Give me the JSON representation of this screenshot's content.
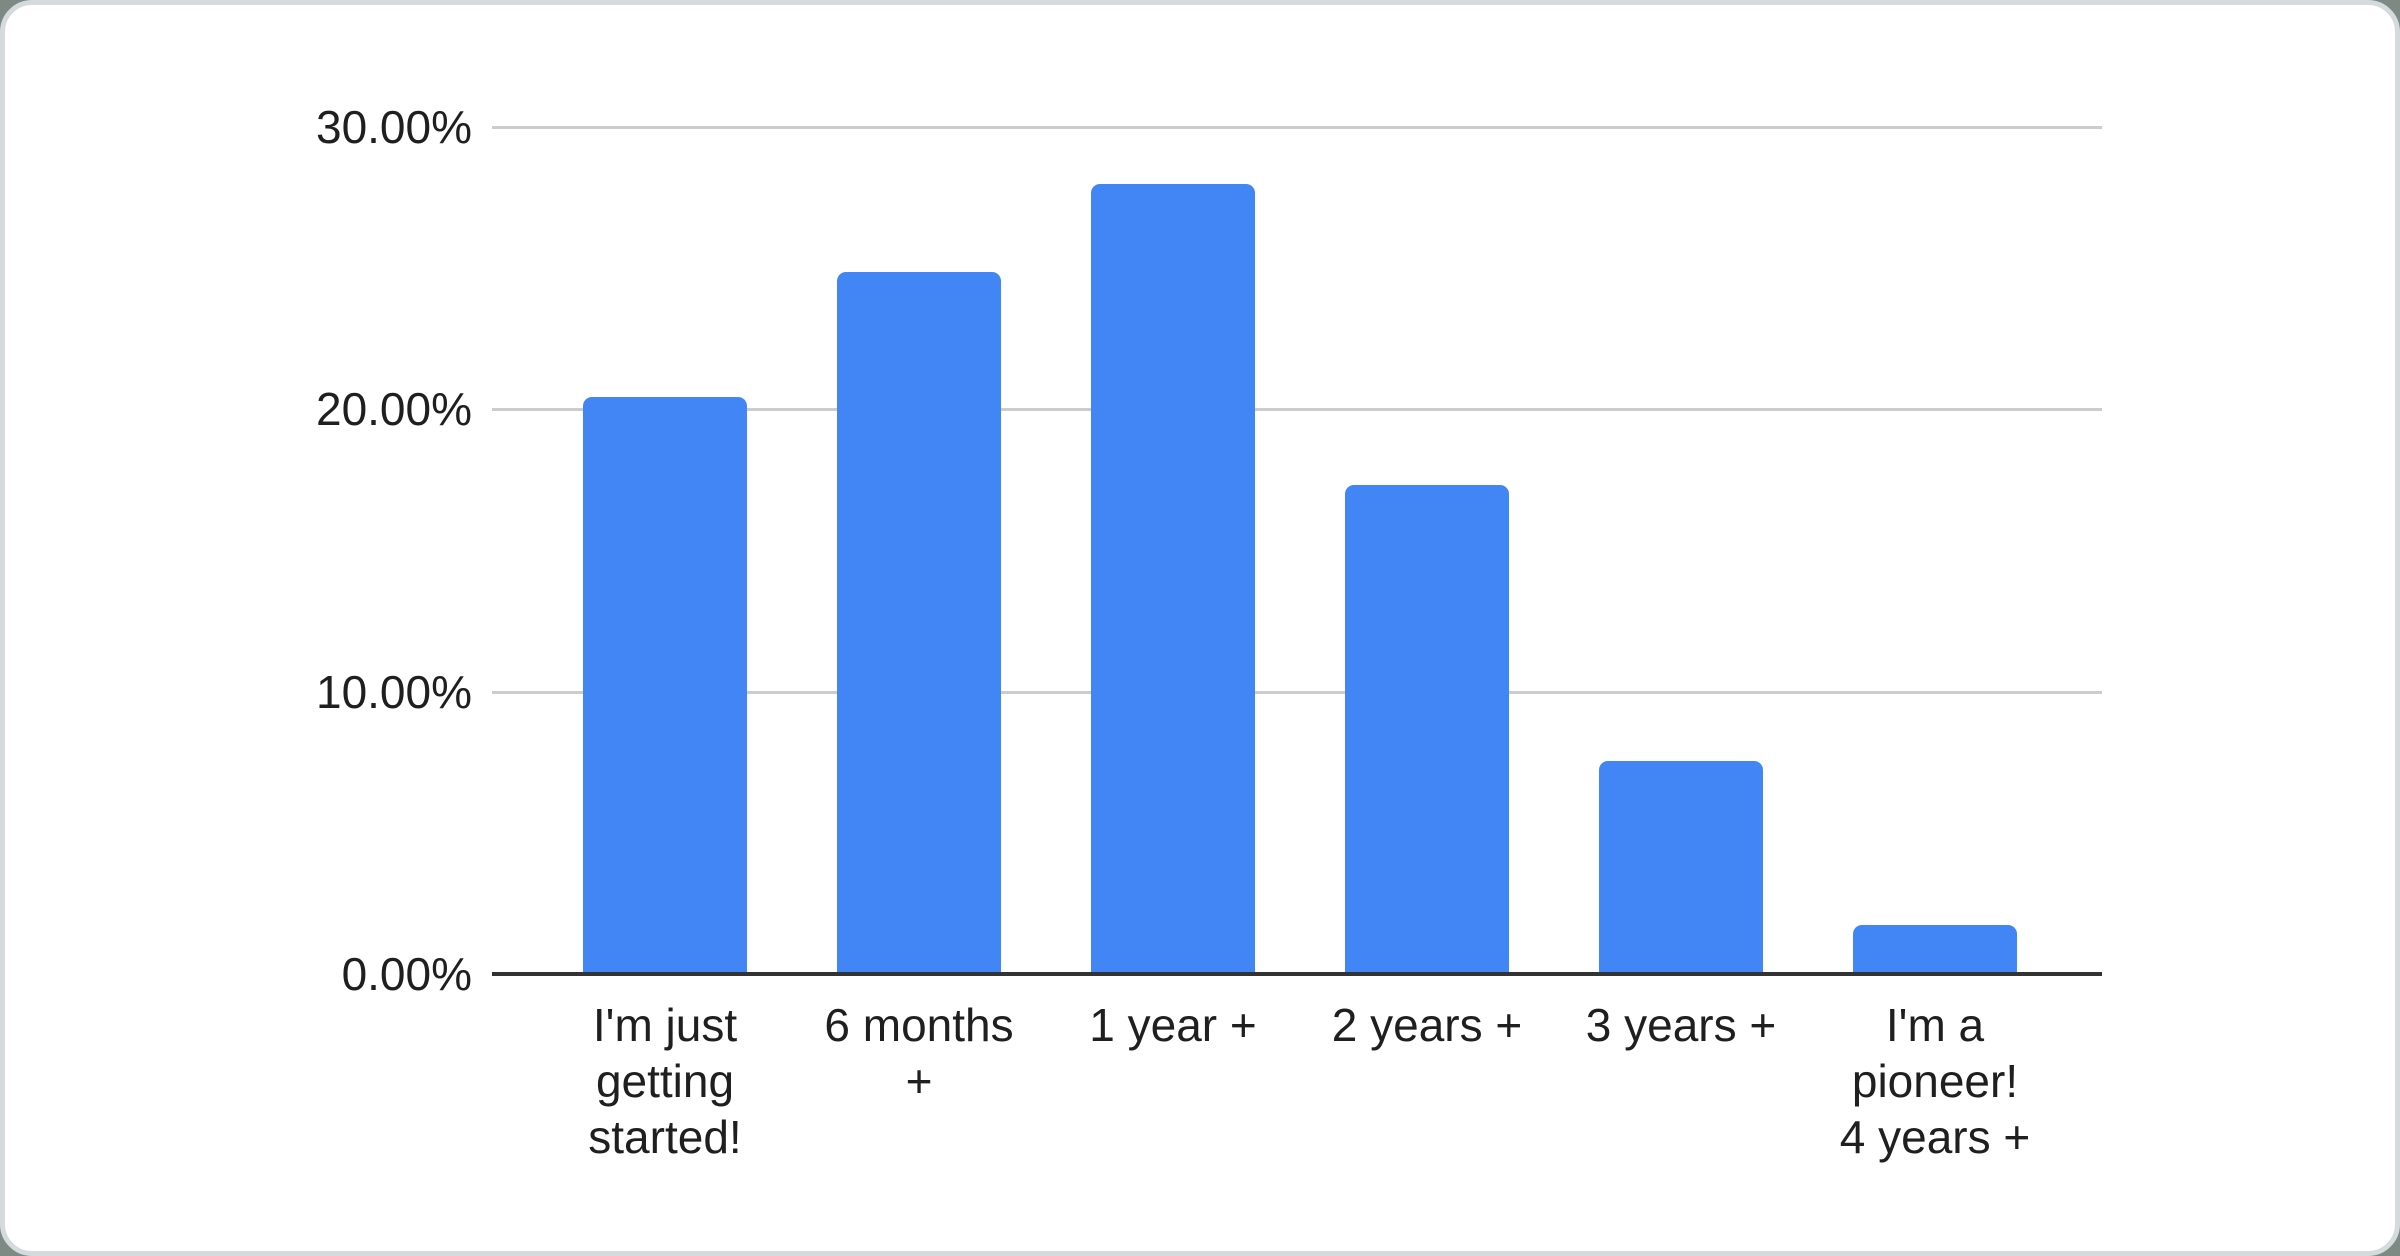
{
  "window": {
    "background_color": "#7d8a83",
    "card_background": "#ffffff",
    "card_border_color": "#d5dadd"
  },
  "chart_data": {
    "type": "bar",
    "title": "",
    "xlabel": "",
    "ylabel": "",
    "categories": [
      "I'm just getting started!",
      "6 months +",
      "1 year +",
      "2 years +",
      "3 years +",
      "I'm a pioneer! 4 years +"
    ],
    "category_display_lines": [
      [
        "I'm just",
        "getting",
        "started!"
      ],
      [
        "6 months",
        "+"
      ],
      [
        "1 year +"
      ],
      [
        "2 years +"
      ],
      [
        "3 years +"
      ],
      [
        "I'm a",
        "pioneer!",
        "4 years +"
      ]
    ],
    "values": [
      20.45,
      24.85,
      27.97,
      17.32,
      7.55,
      1.74
    ],
    "value_unit": "%",
    "ylim": [
      0,
      30
    ],
    "yticks": [
      {
        "value": 0,
        "label": "0.00%"
      },
      {
        "value": 10,
        "label": "10.00%"
      },
      {
        "value": 20,
        "label": "20.00%"
      },
      {
        "value": 30,
        "label": "30.00%"
      }
    ],
    "grid": "horizontal",
    "legend_position": "none",
    "bar_color": "#4285f4",
    "grid_color": "#cccccc",
    "axis_color": "#333333",
    "label_color": "#1f1f1f"
  }
}
